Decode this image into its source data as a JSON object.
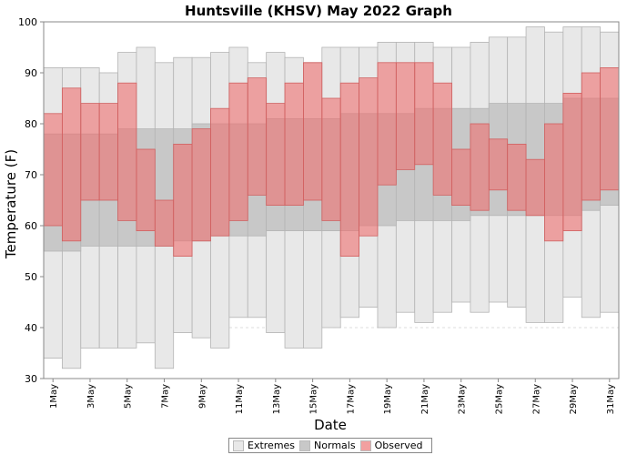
{
  "chart_data": {
    "type": "bar",
    "title": "Huntsville (KHSV) May 2022 Graph",
    "xlabel": "Date",
    "ylabel": "Temperature (F)",
    "ylim": [
      30,
      100
    ],
    "yticks": [
      30,
      40,
      50,
      60,
      70,
      80,
      90,
      100
    ],
    "grid": true,
    "legend_position": "bottom",
    "days": [
      1,
      2,
      3,
      4,
      5,
      6,
      7,
      8,
      9,
      10,
      11,
      12,
      13,
      14,
      15,
      16,
      17,
      18,
      19,
      20,
      21,
      22,
      23,
      24,
      25,
      26,
      27,
      28,
      29,
      30,
      31
    ],
    "tick_labels": [
      "1May",
      "3May",
      "5May",
      "7May",
      "9May",
      "11May",
      "13May",
      "15May",
      "17May",
      "19May",
      "21May",
      "23May",
      "25May",
      "27May",
      "29May",
      "31May"
    ],
    "series": [
      {
        "name": "Extremes",
        "color": "#e8e8e8",
        "low": [
          34,
          32,
          36,
          36,
          36,
          37,
          32,
          39,
          38,
          36,
          42,
          42,
          39,
          36,
          36,
          40,
          42,
          44,
          40,
          43,
          41,
          43,
          45,
          43,
          45,
          44,
          41,
          41,
          46,
          42,
          43
        ],
        "high": [
          91,
          91,
          91,
          90,
          94,
          95,
          92,
          93,
          93,
          94,
          95,
          92,
          94,
          93,
          92,
          95,
          95,
          95,
          96,
          96,
          96,
          95,
          95,
          96,
          97,
          97,
          99,
          98,
          99,
          99,
          98
        ]
      },
      {
        "name": "Normals",
        "color": "#c8c8c8",
        "low": [
          55,
          55,
          56,
          56,
          56,
          56,
          56,
          57,
          57,
          58,
          58,
          58,
          59,
          59,
          59,
          59,
          59,
          60,
          60,
          61,
          61,
          61,
          61,
          62,
          62,
          62,
          62,
          62,
          62,
          63,
          64
        ],
        "high": [
          78,
          78,
          78,
          78,
          79,
          79,
          79,
          79,
          80,
          80,
          80,
          80,
          81,
          81,
          81,
          81,
          82,
          82,
          82,
          82,
          83,
          83,
          83,
          83,
          84,
          84,
          84,
          84,
          85,
          85,
          85
        ]
      },
      {
        "name": "Observed",
        "color": "#ee8080",
        "low": [
          60,
          57,
          65,
          65,
          61,
          59,
          56,
          54,
          57,
          58,
          61,
          66,
          64,
          64,
          65,
          61,
          54,
          58,
          68,
          71,
          72,
          66,
          64,
          63,
          67,
          63,
          62,
          57,
          59,
          65,
          67
        ],
        "high": [
          82,
          87,
          84,
          84,
          88,
          75,
          65,
          76,
          79,
          83,
          88,
          89,
          84,
          88,
          92,
          85,
          88,
          89,
          92,
          92,
          92,
          88,
          75,
          80,
          77,
          76,
          73,
          80,
          86,
          90,
          91
        ]
      }
    ]
  }
}
